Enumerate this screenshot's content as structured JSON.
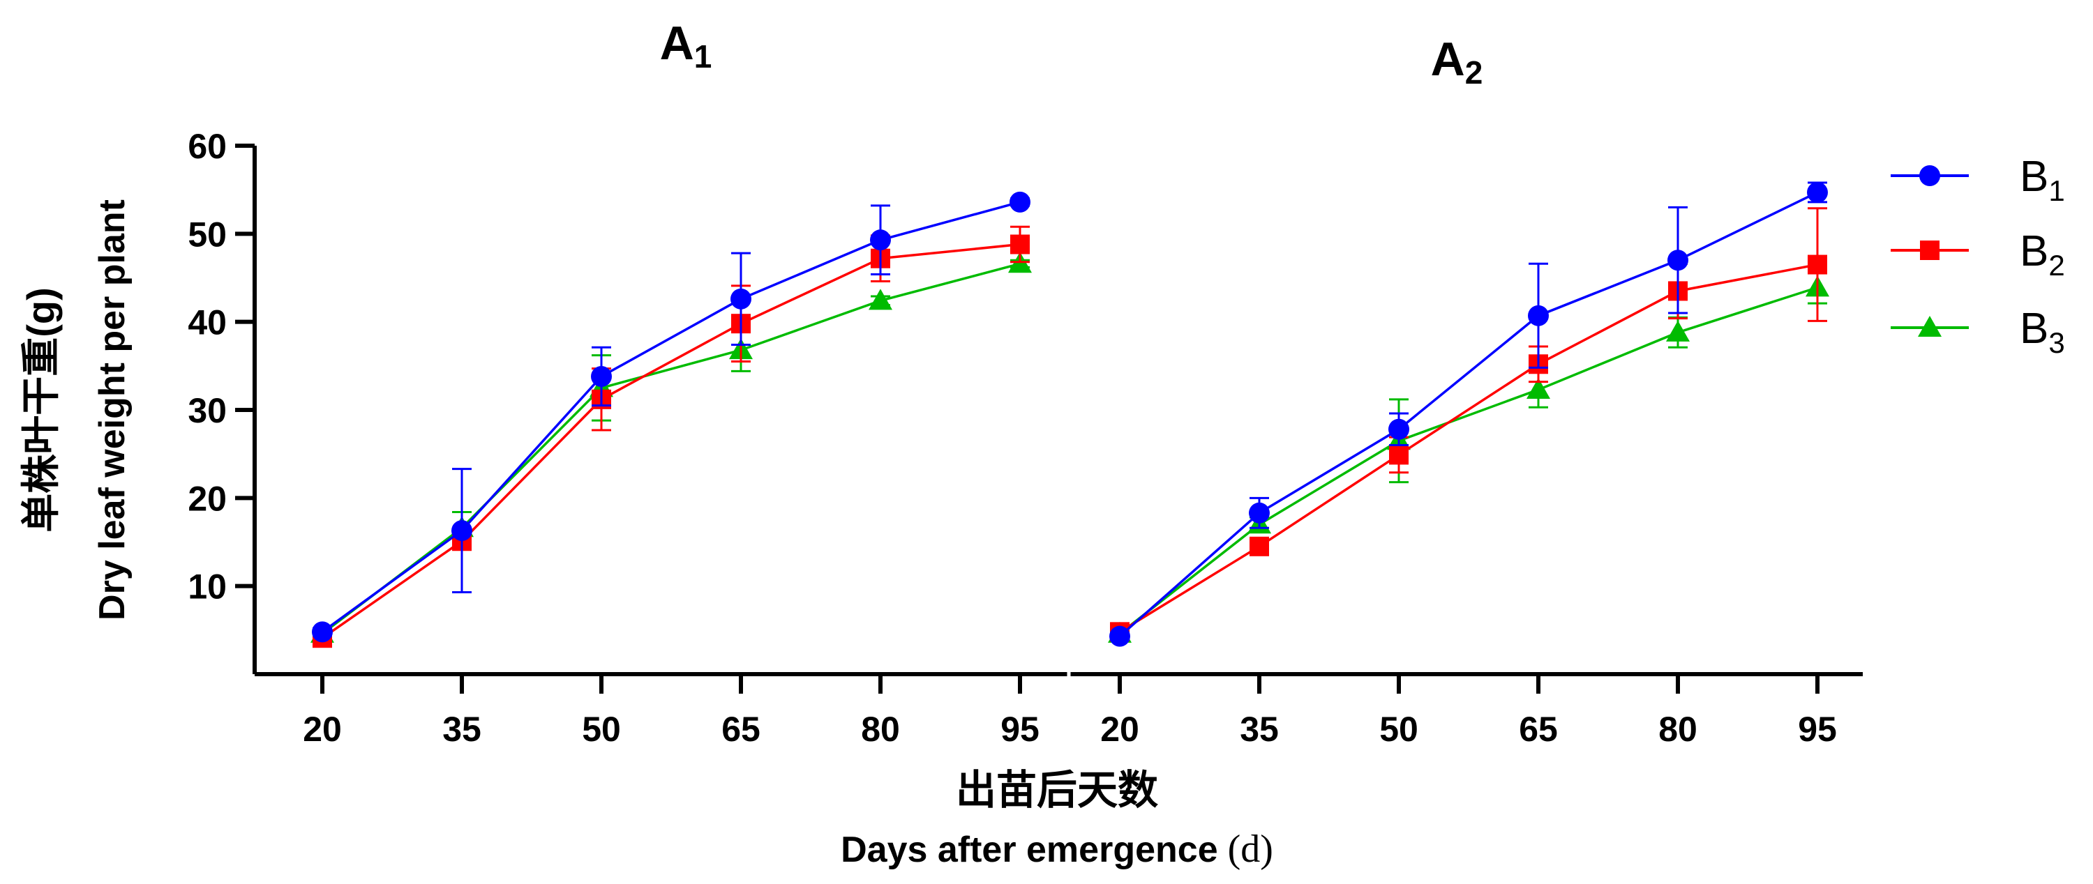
{
  "chart_data": {
    "type": "line",
    "y_axis": {
      "label_zh": "单株叶干重(g)",
      "label_en": "Dry leaf weight per plant",
      "ylim": [
        0,
        60
      ],
      "ticks": [
        10,
        20,
        30,
        40,
        50,
        60
      ]
    },
    "x_axis": {
      "label_zh": "出苗后天数",
      "label_en": "Days after emergence",
      "label_unit": "(d)",
      "categories": [
        20,
        35,
        50,
        65,
        80,
        95
      ]
    },
    "legend": {
      "placement": "right",
      "entries": [
        {
          "base": "B",
          "sub": "1"
        },
        {
          "base": "B",
          "sub": "2"
        },
        {
          "base": "B",
          "sub": "3"
        }
      ]
    },
    "panels": [
      {
        "title": {
          "base": "A",
          "sub": "1"
        },
        "series": [
          {
            "key": "B1",
            "color": "#0000ff",
            "marker": "circle",
            "values": [
              4.8,
              16.3,
              33.8,
              42.6,
              49.3,
              53.6
            ],
            "errors": [
              0.4,
              7.0,
              3.3,
              5.2,
              3.9,
              0.4
            ]
          },
          {
            "key": "B2",
            "color": "#ff0000",
            "marker": "square",
            "values": [
              4.1,
              15.1,
              31.2,
              39.8,
              47.2,
              48.8
            ],
            "errors": [
              0.4,
              0.6,
              3.5,
              4.3,
              2.6,
              2.0
            ]
          },
          {
            "key": "B3",
            "color": "#00bb00",
            "marker": "triangle",
            "values": [
              4.6,
              16.6,
              32.5,
              36.8,
              42.4,
              46.6
            ],
            "errors": [
              0.4,
              1.8,
              3.7,
              2.4,
              0.5,
              0.4
            ]
          }
        ]
      },
      {
        "title": {
          "base": "A",
          "sub": "2"
        },
        "series": [
          {
            "key": "B1",
            "color": "#0000ff",
            "marker": "circle",
            "values": [
              4.3,
              18.3,
              27.8,
              40.7,
              47.0,
              54.7
            ],
            "errors": [
              0.4,
              1.7,
              1.8,
              5.9,
              6.0,
              1.1
            ]
          },
          {
            "key": "B2",
            "color": "#ff0000",
            "marker": "square",
            "values": [
              4.8,
              14.5,
              24.9,
              35.2,
              43.5,
              46.5
            ],
            "errors": [
              0.4,
              0.7,
              2.0,
              2.0,
              3.1,
              6.4
            ]
          },
          {
            "key": "B3",
            "color": "#00bb00",
            "marker": "triangle",
            "values": [
              4.6,
              17.0,
              26.5,
              32.3,
              38.8,
              43.9
            ],
            "errors": [
              0.4,
              0.8,
              4.7,
              2.0,
              1.7,
              1.8
            ]
          }
        ]
      }
    ]
  }
}
